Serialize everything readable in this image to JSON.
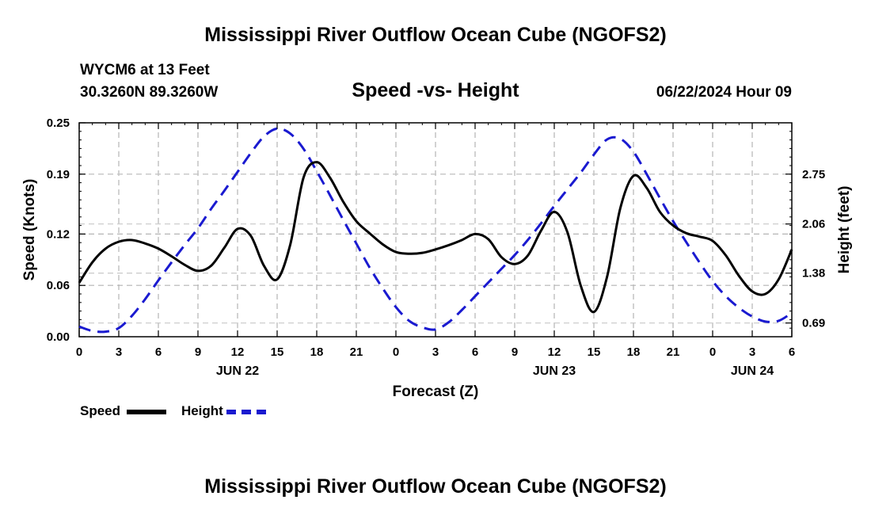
{
  "header": {
    "title": "Mississippi River Outflow Ocean Cube (NGOFS2)",
    "station": "WYCM6 at 13 Feet",
    "coords": "30.3260N  89.3260W",
    "chart_title": "Speed -vs- Height",
    "run_time": "06/22/2024 Hour 09"
  },
  "footer": {
    "title": "Mississippi River Outflow Ocean Cube (NGOFS2)"
  },
  "legend": {
    "speed_label": "Speed",
    "height_label": "Height",
    "speed_color": "#000000",
    "height_color": "#1a1ad0"
  },
  "chart_data": {
    "type": "line",
    "title": "Speed -vs- Height",
    "xlabel": "Forecast (Z)",
    "ylabel": "Speed (Knots)",
    "y2label": "Height (feet)",
    "xlim": [
      0,
      54
    ],
    "ylim": [
      0,
      0.25
    ],
    "y2lim": [
      0.5,
      3.46
    ],
    "x_tick_values": [
      0,
      3,
      6,
      9,
      12,
      15,
      18,
      21,
      24,
      27,
      30,
      33,
      36,
      39,
      42,
      45,
      48,
      51,
      54
    ],
    "x_tick_labels": [
      "0",
      "3",
      "6",
      "9",
      "12",
      "15",
      "18",
      "21",
      "0",
      "3",
      "6",
      "9",
      "12",
      "15",
      "18",
      "21",
      "0",
      "3",
      "6"
    ],
    "date_labels": [
      {
        "x": 12,
        "label": "JUN 22"
      },
      {
        "x": 36,
        "label": "JUN 23"
      },
      {
        "x": 51,
        "label": "JUN 24"
      }
    ],
    "y_ticks": [
      0.0,
      0.06,
      0.12,
      0.19,
      0.25
    ],
    "y_tick_labels": [
      "0.00",
      "0.06",
      "0.12",
      "0.19",
      "0.25"
    ],
    "y2_ticks": [
      0.69,
      1.38,
      2.06,
      2.75
    ],
    "y2_tick_labels": [
      "0.69",
      "1.38",
      "2.06",
      "2.75"
    ],
    "series": [
      {
        "name": "Speed",
        "axis": "left",
        "style": "solid",
        "x": [
          0,
          1,
          2,
          3,
          4,
          5,
          6,
          7,
          8,
          9,
          10,
          11,
          12,
          13,
          14,
          15,
          16,
          17,
          18,
          19,
          20,
          21,
          22,
          23,
          24,
          25,
          26,
          27,
          28,
          29,
          30,
          31,
          32,
          33,
          34,
          35,
          36,
          37,
          38,
          39,
          40,
          41,
          42,
          43,
          44,
          45,
          46,
          47,
          48,
          49,
          50,
          51,
          52,
          53,
          54
        ],
        "values": [
          0.063,
          0.087,
          0.103,
          0.111,
          0.113,
          0.109,
          0.103,
          0.094,
          0.084,
          0.077,
          0.083,
          0.104,
          0.126,
          0.118,
          0.083,
          0.067,
          0.108,
          0.186,
          0.204,
          0.186,
          0.158,
          0.135,
          0.121,
          0.108,
          0.099,
          0.097,
          0.098,
          0.102,
          0.107,
          0.113,
          0.12,
          0.114,
          0.093,
          0.085,
          0.095,
          0.124,
          0.146,
          0.122,
          0.06,
          0.029,
          0.07,
          0.15,
          0.188,
          0.174,
          0.146,
          0.13,
          0.121,
          0.117,
          0.112,
          0.095,
          0.071,
          0.053,
          0.05,
          0.067,
          0.102
        ]
      },
      {
        "name": "Height",
        "axis": "right",
        "style": "dashed",
        "x": [
          0,
          1,
          2,
          3,
          4,
          5,
          6,
          7,
          8,
          9,
          10,
          11,
          12,
          13,
          14,
          15,
          16,
          17,
          18,
          19,
          20,
          21,
          22,
          23,
          24,
          25,
          26,
          27,
          28,
          29,
          30,
          31,
          32,
          33,
          34,
          35,
          36,
          37,
          38,
          39,
          40,
          41,
          42,
          43,
          44,
          45,
          46,
          47,
          48,
          49,
          50,
          51,
          52,
          53,
          54
        ],
        "values": [
          0.64,
          0.58,
          0.57,
          0.62,
          0.79,
          1.02,
          1.28,
          1.53,
          1.77,
          2.0,
          2.27,
          2.52,
          2.78,
          3.04,
          3.27,
          3.38,
          3.31,
          3.1,
          2.79,
          2.46,
          2.12,
          1.79,
          1.46,
          1.17,
          0.91,
          0.72,
          0.63,
          0.6,
          0.7,
          0.87,
          1.06,
          1.25,
          1.44,
          1.63,
          1.84,
          2.07,
          2.31,
          2.54,
          2.77,
          3.02,
          3.23,
          3.24,
          3.06,
          2.75,
          2.42,
          2.1,
          1.81,
          1.53,
          1.27,
          1.06,
          0.9,
          0.78,
          0.71,
          0.72,
          0.83
        ]
      }
    ]
  }
}
